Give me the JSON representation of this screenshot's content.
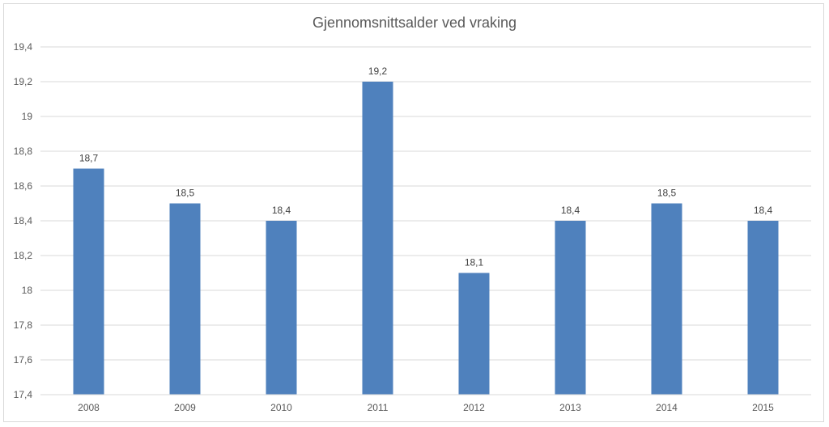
{
  "chart_data": {
    "type": "bar",
    "title": "Gjennomsnittsalder ved vraking",
    "xlabel": "",
    "ylabel": "",
    "categories": [
      "2008",
      "2009",
      "2010",
      "2011",
      "2012",
      "2013",
      "2014",
      "2015"
    ],
    "values": [
      18.7,
      18.5,
      18.4,
      19.2,
      18.1,
      18.4,
      18.5,
      18.4
    ],
    "data_labels": [
      "18,7",
      "18,5",
      "18,4",
      "19,2",
      "18,1",
      "18,4",
      "18,5",
      "18,4"
    ],
    "ylim": [
      17.4,
      19.4
    ],
    "yticks": [
      17.4,
      17.6,
      17.8,
      18,
      18.2,
      18.4,
      18.6,
      18.8,
      19,
      19.2,
      19.4
    ],
    "ytick_labels": [
      "17,4",
      "17,6",
      "17,8",
      "18",
      "18,2",
      "18,4",
      "18,6",
      "18,8",
      "19",
      "19,2",
      "19,4"
    ],
    "grid": true,
    "bar_color": "#4f81bd",
    "grid_color": "#d9d9d9"
  }
}
